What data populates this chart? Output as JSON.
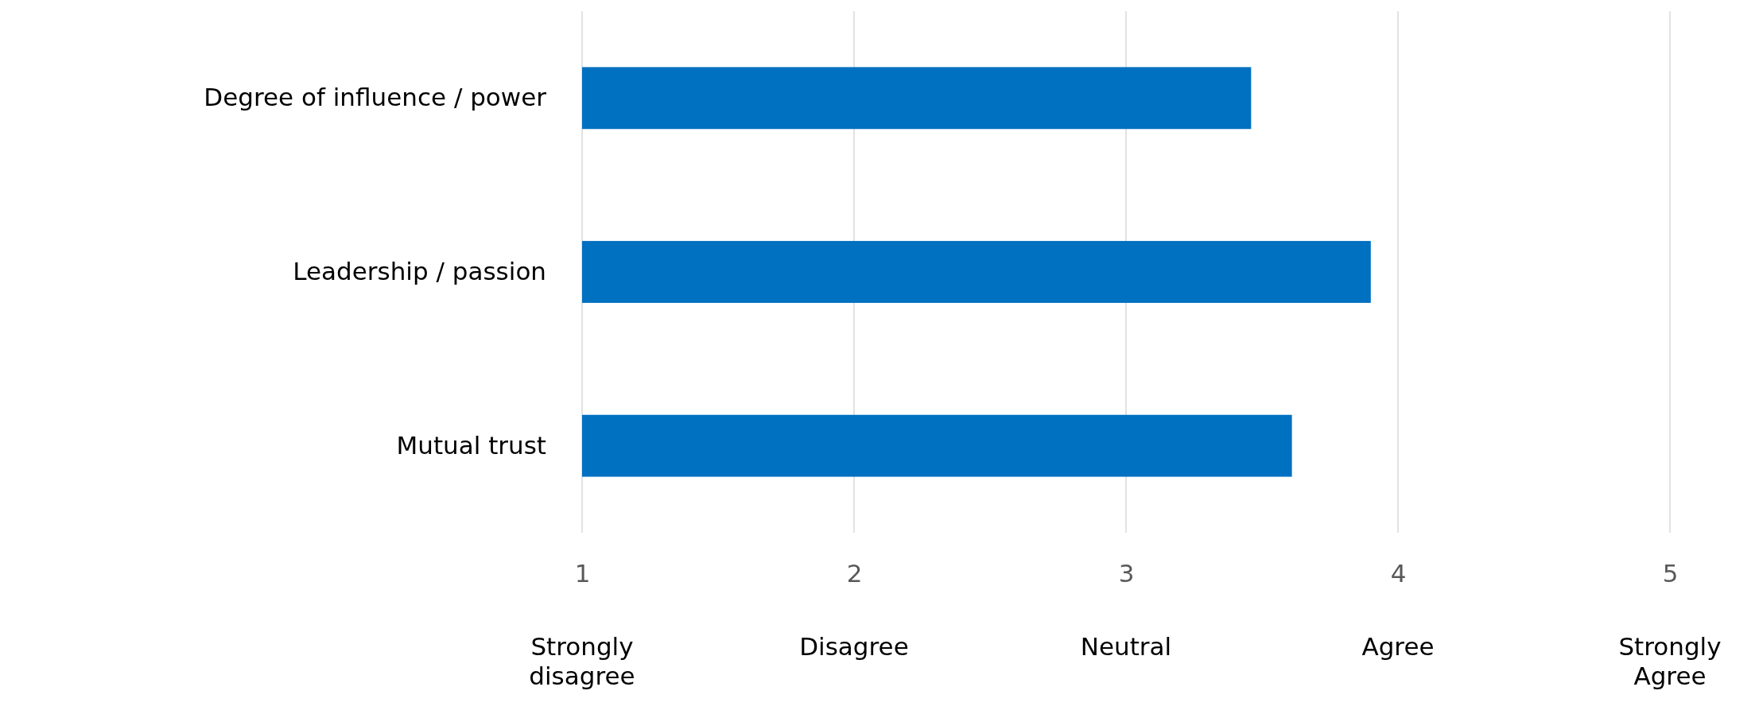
{
  "chart_data": {
    "type": "bar",
    "orientation": "horizontal",
    "categories": [
      "Degree of influence / power",
      "Leadership / passion",
      "Mutual trust"
    ],
    "values": [
      3.46,
      3.9,
      3.61
    ],
    "color": "#0070c0",
    "xlim": [
      1,
      5
    ],
    "xticks": [
      1,
      2,
      3,
      4,
      5
    ],
    "grid": "x",
    "annotations": [
      "Strongly disagree",
      "Disagree",
      "Neutral",
      "Agree",
      "Strongly Agree"
    ]
  }
}
